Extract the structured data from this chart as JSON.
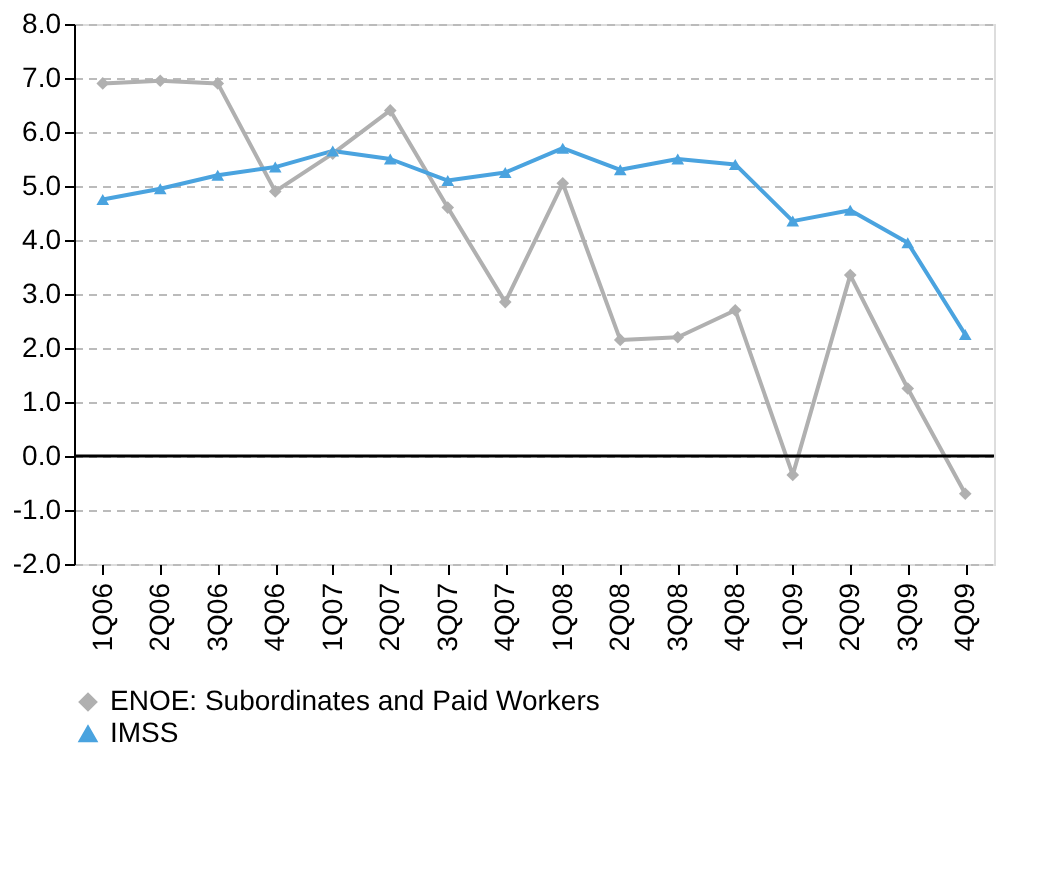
{
  "chart_data": {
    "type": "line",
    "categories": [
      "1Q06",
      "2Q06",
      "3Q06",
      "4Q06",
      "1Q07",
      "2Q07",
      "3Q07",
      "4Q07",
      "1Q08",
      "2Q08",
      "3Q08",
      "4Q08",
      "1Q09",
      "2Q09",
      "3Q09",
      "4Q09"
    ],
    "series": [
      {
        "name": "ENOE: Subordinates and Paid Workers",
        "color": "#b0b0b0",
        "marker": "diamond",
        "values": [
          6.9,
          6.95,
          6.9,
          4.9,
          5.6,
          6.4,
          4.6,
          2.85,
          5.05,
          2.15,
          2.2,
          2.7,
          -0.35,
          3.35,
          1.25,
          -0.7
        ]
      },
      {
        "name": "IMSS",
        "color": "#4aa3df",
        "marker": "triangle",
        "values": [
          4.75,
          4.95,
          5.2,
          5.35,
          5.65,
          5.5,
          5.1,
          5.25,
          5.7,
          5.3,
          5.5,
          5.4,
          4.35,
          4.55,
          3.95,
          2.25
        ]
      }
    ],
    "ylim": [
      -2,
      8
    ],
    "yticks": [
      {
        "value": -2,
        "label": "-2.0"
      },
      {
        "value": -1,
        "label": "-1.0"
      },
      {
        "value": 0,
        "label": "0.0"
      },
      {
        "value": 1,
        "label": "1.0"
      },
      {
        "value": 2,
        "label": "2.0"
      },
      {
        "value": 3,
        "label": "3.0"
      },
      {
        "value": 4,
        "label": "4.0"
      },
      {
        "value": 5,
        "label": "5.0"
      },
      {
        "value": 6,
        "label": "6.0"
      },
      {
        "value": 7,
        "label": "7.0"
      },
      {
        "value": 8,
        "label": "8.0"
      }
    ],
    "ref_lines": [
      {
        "axis": "y",
        "value": 0,
        "color": "#000000"
      }
    ],
    "grid": "y",
    "legend": "bottom",
    "line_style": "solid"
  }
}
